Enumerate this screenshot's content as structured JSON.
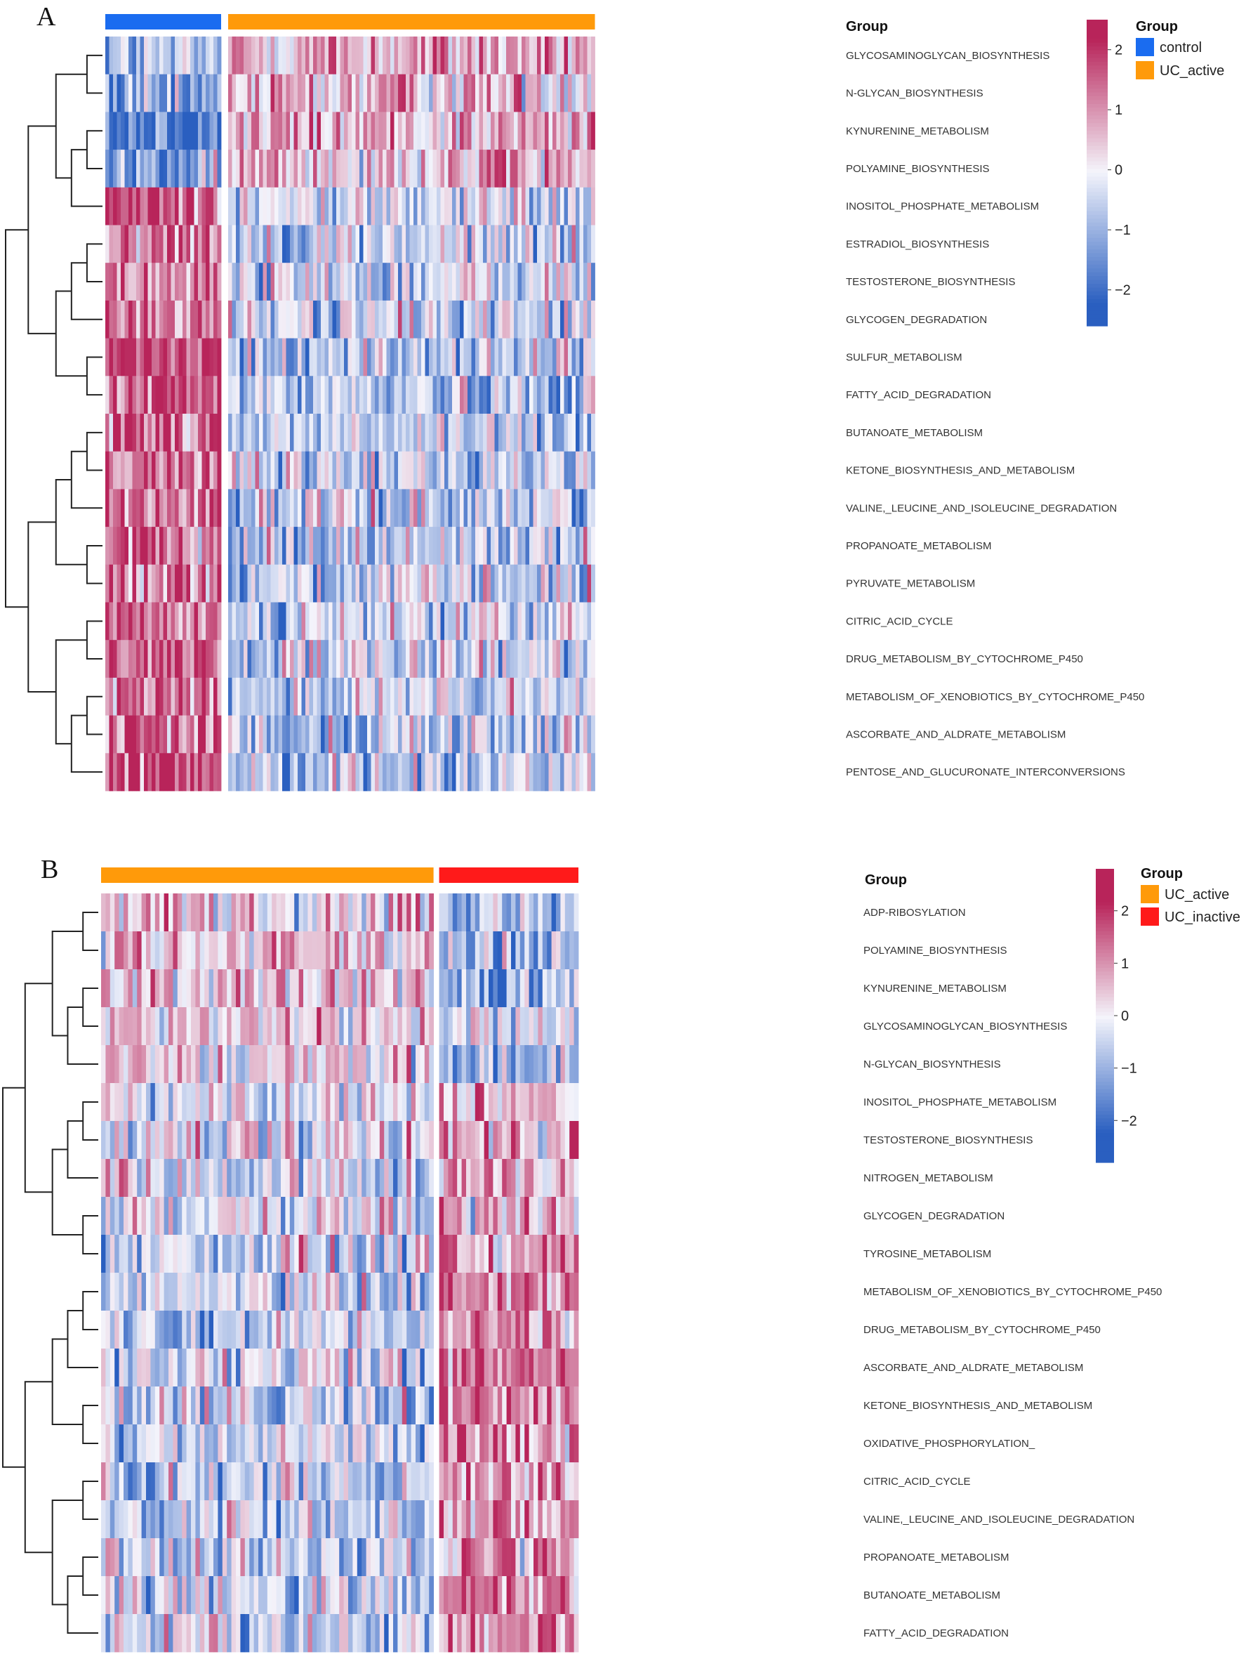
{
  "colors": {
    "control": "#1a6cf0",
    "UC_active": "#ff9a0a",
    "UC_inactive": "#ff1a1a",
    "high": "#b8245a",
    "mid": "#f4f4fb",
    "low": "#2a5fc0"
  },
  "chart_data": [
    {
      "panel_label": "A",
      "type": "heatmap",
      "annotation_title": "Group",
      "legend": {
        "title": "Group",
        "entries": [
          {
            "label": "control",
            "color": "#1a6cf0"
          },
          {
            "label": "UC_active",
            "color": "#ff9a0a"
          }
        ]
      },
      "colorbar": {
        "ticks": [
          "2",
          "1",
          "0",
          "−1",
          "−2"
        ],
        "tick_values": [
          2,
          1,
          0,
          -1,
          -2
        ],
        "range": [
          -2.6,
          2.5
        ]
      },
      "groups": [
        {
          "name": "control",
          "n_samples": 30,
          "color": "#1a6cf0"
        },
        {
          "name": "UC_active",
          "n_samples": 95,
          "color": "#ff9a0a"
        }
      ],
      "rows": [
        {
          "label": "GLYCOSAMINOGLYCAN_BIOSYNTHESIS",
          "means": [
            -0.9,
            0.8
          ]
        },
        {
          "label": "N-GLYCAN_BIOSYNTHESIS",
          "means": [
            -1.5,
            0.6
          ]
        },
        {
          "label": "KYNURENINE_METABOLISM",
          "means": [
            -1.5,
            0.7
          ]
        },
        {
          "label": "POLYAMINE_BIOSYNTHESIS",
          "means": [
            -1.3,
            0.7
          ]
        },
        {
          "label": "INOSITOL_PHOSPHATE_METABOLISM",
          "means": [
            1.8,
            -0.3
          ]
        },
        {
          "label": "ESTRADIOL_BIOSYNTHESIS",
          "means": [
            1.5,
            -0.4
          ]
        },
        {
          "label": "TESTOSTERONE_BIOSYNTHESIS",
          "means": [
            1.3,
            -0.3
          ]
        },
        {
          "label": "GLYCOGEN_DEGRADATION",
          "means": [
            1.3,
            -0.4
          ]
        },
        {
          "label": "SULFUR_METABOLISM",
          "means": [
            1.7,
            -0.6
          ]
        },
        {
          "label": "FATTY_ACID_DEGRADATION",
          "means": [
            1.6,
            -0.6
          ]
        },
        {
          "label": "BUTANOATE_METABOLISM",
          "means": [
            1.6,
            -0.6
          ]
        },
        {
          "label": "KETONE_BIOSYNTHESIS_AND_METABOLISM",
          "means": [
            1.5,
            -0.5
          ]
        },
        {
          "label": "VALINE,_LEUCINE_AND_ISOLEUCINE_DEGRADATION",
          "means": [
            1.5,
            -0.5
          ]
        },
        {
          "label": "PROPANOATE_METABOLISM",
          "means": [
            1.5,
            -0.5
          ]
        },
        {
          "label": "PYRUVATE_METABOLISM",
          "means": [
            1.5,
            -0.5
          ]
        },
        {
          "label": "CITRIC_ACID_CYCLE",
          "means": [
            1.3,
            -0.4
          ]
        },
        {
          "label": "DRUG_METABOLISM_BY_CYTOCHROME_P450",
          "means": [
            1.7,
            -0.5
          ]
        },
        {
          "label": "METABOLISM_OF_XENOBIOTICS_BY_CYTOCHROME_P450",
          "means": [
            1.7,
            -0.5
          ]
        },
        {
          "label": "ASCORBATE_AND_ALDRATE_METABOLISM",
          "means": [
            1.5,
            -0.5
          ]
        },
        {
          "label": "PENTOSE_AND_GLUCURONATE_INTERCONVERSIONS",
          "means": [
            1.7,
            -0.5
          ]
        }
      ]
    },
    {
      "panel_label": "B",
      "type": "heatmap",
      "annotation_title": "Group",
      "legend": {
        "title": "Group",
        "entries": [
          {
            "label": "UC_active",
            "color": "#ff9a0a"
          },
          {
            "label": "UC_inactive",
            "color": "#ff1a1a"
          }
        ]
      },
      "colorbar": {
        "ticks": [
          "2",
          "1",
          "0",
          "−1",
          "−2"
        ],
        "tick_values": [
          2,
          1,
          0,
          -1,
          -2
        ],
        "range": [
          -2.8,
          2.8
        ]
      },
      "groups": [
        {
          "name": "UC_active",
          "n_samples": 74,
          "color": "#ff9a0a"
        },
        {
          "name": "UC_inactive",
          "n_samples": 31,
          "color": "#ff1a1a"
        }
      ],
      "rows": [
        {
          "label": "ADP-RIBOSYLATION",
          "means": [
            0.5,
            -0.9
          ]
        },
        {
          "label": "POLYAMINE_BIOSYNTHESIS",
          "means": [
            0.4,
            -1.0
          ]
        },
        {
          "label": "KYNURENINE_METABOLISM",
          "means": [
            0.5,
            -0.9
          ]
        },
        {
          "label": "GLYCOSAMINOGLYCAN_BIOSYNTHESIS",
          "means": [
            0.4,
            -0.6
          ]
        },
        {
          "label": "N-GLYCAN_BIOSYNTHESIS",
          "means": [
            0.3,
            -0.8
          ]
        },
        {
          "label": "INOSITOL_PHOSPHATE_METABOLISM",
          "means": [
            -0.2,
            0.6
          ]
        },
        {
          "label": "TESTOSTERONE_BIOSYNTHESIS",
          "means": [
            -0.2,
            0.6
          ]
        },
        {
          "label": "NITROGEN_METABOLISM",
          "means": [
            -0.1,
            0.8
          ]
        },
        {
          "label": "GLYCOGEN_DEGRADATION",
          "means": [
            -0.2,
            0.6
          ]
        },
        {
          "label": "TYROSINE_METABOLISM",
          "means": [
            -0.3,
            1.0
          ]
        },
        {
          "label": "METABOLISM_OF_XENOBIOTICS_BY_CYTOCHROME_P450",
          "means": [
            -0.4,
            1.0
          ]
        },
        {
          "label": "DRUG_METABOLISM_BY_CYTOCHROME_P450",
          "means": [
            -0.4,
            1.0
          ]
        },
        {
          "label": "ASCORBATE_AND_ALDRATE_METABOLISM",
          "means": [
            -0.4,
            1.1
          ]
        },
        {
          "label": "KETONE_BIOSYNTHESIS_AND_METABOLISM",
          "means": [
            -0.4,
            1.1
          ]
        },
        {
          "label": "OXIDATIVE_PHOSPHORYLATION_",
          "means": [
            -0.4,
            1.0
          ]
        },
        {
          "label": "CITRIC_ACID_CYCLE",
          "means": [
            -0.4,
            1.0
          ]
        },
        {
          "label": "VALINE,_LEUCINE_AND_ISOLEUCINE_DEGRADATION",
          "means": [
            -0.4,
            1.1
          ]
        },
        {
          "label": "PROPANOATE_METABOLISM",
          "means": [
            -0.4,
            1.1
          ]
        },
        {
          "label": "BUTANOATE_METABOLISM",
          "means": [
            -0.4,
            1.1
          ]
        },
        {
          "label": "FATTY_ACID_DEGRADATION",
          "means": [
            -0.4,
            1.1
          ]
        }
      ]
    }
  ]
}
